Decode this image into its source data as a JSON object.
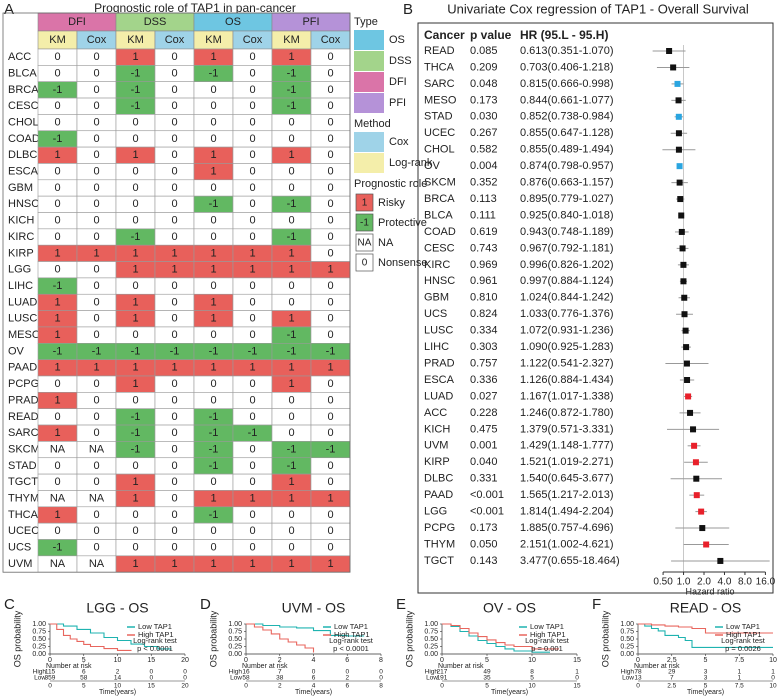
{
  "chart_data": [
    {
      "type": "heatmap",
      "panel": "A",
      "title": "Prognostic role of TAP1 in pan-cancer",
      "column_groups": [
        "DFI",
        "DSS",
        "OS",
        "PFI"
      ],
      "methods": [
        "KM",
        "Cox"
      ],
      "categories": [
        "ACC",
        "BLCA",
        "BRCA",
        "CESC",
        "CHOL",
        "COAD",
        "DLBC",
        "ESCA",
        "GBM",
        "HNSC",
        "KICH",
        "KIRC",
        "KIRP",
        "LGG",
        "LIHC",
        "LUAD",
        "LUSC",
        "MESO",
        "OV",
        "PAAD",
        "PCPG",
        "PRAD",
        "READ",
        "SARC",
        "SKCM",
        "STAD",
        "TGCT",
        "THYM",
        "THCA",
        "UCEC",
        "UCS",
        "UVM"
      ],
      "values": [
        [
          0,
          0,
          1,
          0,
          1,
          0,
          1,
          0
        ],
        [
          0,
          0,
          -1,
          0,
          -1,
          0,
          -1,
          0
        ],
        [
          -1,
          0,
          -1,
          0,
          0,
          0,
          -1,
          0
        ],
        [
          0,
          0,
          -1,
          0,
          0,
          0,
          -1,
          0
        ],
        [
          0,
          0,
          0,
          0,
          0,
          0,
          0,
          0
        ],
        [
          -1,
          0,
          0,
          0,
          0,
          0,
          0,
          0
        ],
        [
          1,
          0,
          1,
          0,
          1,
          0,
          1,
          0
        ],
        [
          0,
          0,
          0,
          0,
          1,
          0,
          0,
          0
        ],
        [
          0,
          0,
          0,
          0,
          0,
          0,
          0,
          0
        ],
        [
          0,
          0,
          0,
          0,
          -1,
          0,
          -1,
          0
        ],
        [
          0,
          0,
          0,
          0,
          0,
          0,
          0,
          0
        ],
        [
          0,
          0,
          -1,
          0,
          0,
          0,
          -1,
          0
        ],
        [
          1,
          1,
          1,
          1,
          1,
          1,
          1,
          0
        ],
        [
          0,
          0,
          1,
          1,
          1,
          1,
          1,
          1
        ],
        [
          -1,
          0,
          0,
          0,
          0,
          0,
          0,
          0
        ],
        [
          1,
          0,
          1,
          0,
          1,
          0,
          0,
          0
        ],
        [
          1,
          0,
          1,
          0,
          1,
          0,
          1,
          0
        ],
        [
          1,
          0,
          0,
          0,
          0,
          0,
          -1,
          0
        ],
        [
          -1,
          -1,
          -1,
          -1,
          -1,
          -1,
          -1,
          -1
        ],
        [
          1,
          1,
          1,
          1,
          1,
          1,
          1,
          1
        ],
        [
          0,
          0,
          1,
          0,
          0,
          0,
          1,
          0
        ],
        [
          1,
          0,
          0,
          0,
          0,
          0,
          0,
          0
        ],
        [
          0,
          0,
          -1,
          0,
          -1,
          0,
          0,
          0
        ],
        [
          1,
          0,
          -1,
          0,
          -1,
          -1,
          0,
          0
        ],
        [
          null,
          null,
          -1,
          0,
          -1,
          0,
          -1,
          -1
        ],
        [
          0,
          0,
          0,
          0,
          -1,
          0,
          -1,
          0
        ],
        [
          0,
          0,
          1,
          0,
          0,
          0,
          1,
          0
        ],
        [
          null,
          null,
          1,
          0,
          1,
          1,
          1,
          1
        ],
        [
          1,
          0,
          0,
          0,
          -1,
          0,
          0,
          0
        ],
        [
          0,
          0,
          0,
          0,
          0,
          0,
          0,
          0
        ],
        [
          -1,
          0,
          0,
          0,
          0,
          0,
          0,
          0
        ],
        [
          null,
          null,
          1,
          1,
          1,
          1,
          1,
          1
        ]
      ],
      "legend": {
        "type_title": "Type",
        "types": [
          {
            "name": "OS",
            "color": "#6ec6e2"
          },
          {
            "name": "DSS",
            "color": "#a3d48b"
          },
          {
            "name": "DFI",
            "color": "#da74a8"
          },
          {
            "name": "PFI",
            "color": "#b592d8"
          }
        ],
        "method_title": "Method",
        "method_types": [
          {
            "name": "Cox",
            "color": "#9fd3e8"
          },
          {
            "name": "Log-rank",
            "color": "#f4eeaa"
          }
        ],
        "role_title": "Prognostic role",
        "roles": [
          {
            "key": 1,
            "name": "Risky",
            "color": "#e8605b"
          },
          {
            "key": -1,
            "name": "Protective",
            "color": "#62b862"
          },
          {
            "key": "NA",
            "name": "NA",
            "color": "#ffffff"
          },
          {
            "key": 0,
            "name": "Nonsense",
            "color": "#ffffff"
          }
        ]
      }
    },
    {
      "type": "forest",
      "panel": "B",
      "title": "Univariate Cox regression of TAP1 - Overall Survival",
      "headers": [
        "Cancer",
        "p value",
        "HR (95.L - 95.H)"
      ],
      "categories": [
        "READ",
        "THCA",
        "SARC",
        "MESO",
        "STAD",
        "UCEC",
        "CHOL",
        "OV",
        "SKCM",
        "BRCA",
        "BLCA",
        "COAD",
        "CESC",
        "KIRC",
        "HNSC",
        "GBM",
        "UCS",
        "LUSC",
        "LIHC",
        "PRAD",
        "ESCA",
        "LUAD",
        "ACC",
        "KICH",
        "UVM",
        "KIRP",
        "DLBC",
        "PAAD",
        "LGG",
        "PCPG",
        "THYM",
        "TGCT"
      ],
      "p_values": [
        "0.085",
        "0.209",
        "0.048",
        "0.173",
        "0.030",
        "0.267",
        "0.582",
        "0.004",
        "0.352",
        "0.113",
        "0.111",
        "0.619",
        "0.743",
        "0.969",
        "0.961",
        "0.810",
        "0.824",
        "0.334",
        "0.303",
        "0.757",
        "0.336",
        "0.027",
        "0.228",
        "0.475",
        "0.001",
        "0.040",
        "0.331",
        "<0.001",
        "<0.001",
        "0.173",
        "0.050",
        "0.143"
      ],
      "values": [
        0.613,
        0.703,
        0.815,
        0.844,
        0.852,
        0.855,
        0.855,
        0.874,
        0.876,
        0.895,
        0.925,
        0.943,
        0.967,
        0.996,
        0.997,
        1.024,
        1.033,
        1.072,
        1.09,
        1.122,
        1.126,
        1.167,
        1.246,
        1.379,
        1.429,
        1.521,
        1.54,
        1.565,
        1.814,
        1.885,
        2.151,
        3.477
      ],
      "lower": [
        0.351,
        0.406,
        0.666,
        0.661,
        0.738,
        0.647,
        0.489,
        0.798,
        0.663,
        0.779,
        0.84,
        0.748,
        0.792,
        0.826,
        0.884,
        0.844,
        0.776,
        0.931,
        0.925,
        0.541,
        0.884,
        1.017,
        0.872,
        0.571,
        1.148,
        1.019,
        0.645,
        1.217,
        1.494,
        0.757,
        1.002,
        0.655
      ],
      "upper": [
        1.07,
        1.218,
        0.998,
        1.077,
        0.984,
        1.128,
        1.494,
        0.957,
        1.157,
        1.027,
        1.018,
        1.189,
        1.181,
        1.202,
        1.124,
        1.242,
        1.376,
        1.236,
        1.283,
        2.327,
        1.434,
        1.338,
        1.78,
        3.331,
        1.777,
        2.271,
        3.677,
        2.013,
        2.204,
        4.696,
        4.621,
        18.464
      ],
      "value_labels": [
        "0.613(0.351-1.070)",
        "0.703(0.406-1.218)",
        "0.815(0.666-0.998)",
        "0.844(0.661-1.077)",
        "0.852(0.738-0.984)",
        "0.855(0.647-1.128)",
        "0.855(0.489-1.494)",
        "0.874(0.798-0.957)",
        "0.876(0.663-1.157)",
        "0.895(0.779-1.027)",
        "0.925(0.840-1.018)",
        "0.943(0.748-1.189)",
        "0.967(0.792-1.181)",
        "0.996(0.826-1.202)",
        "0.997(0.884-1.124)",
        "1.024(0.844-1.242)",
        "1.033(0.776-1.376)",
        "1.072(0.931-1.236)",
        "1.090(0.925-1.283)",
        "1.122(0.541-2.327)",
        "1.126(0.884-1.434)",
        "1.167(1.017-1.338)",
        "1.246(0.872-1.780)",
        "1.379(0.571-3.331)",
        "1.429(1.148-1.777)",
        "1.521(1.019-2.271)",
        "1.540(0.645-3.677)",
        "1.565(1.217-2.013)",
        "1.814(1.494-2.204)",
        "1.885(0.757-4.696)",
        "2.151(1.002-4.621)",
        "3.477(0.655-18.464)"
      ],
      "colors": [
        "#111111",
        "#111111",
        "#2aa5e0",
        "#111111",
        "#2aa5e0",
        "#111111",
        "#111111",
        "#2aa5e0",
        "#111111",
        "#111111",
        "#111111",
        "#111111",
        "#111111",
        "#111111",
        "#111111",
        "#111111",
        "#111111",
        "#111111",
        "#111111",
        "#111111",
        "#111111",
        "#e8202a",
        "#111111",
        "#111111",
        "#e8202a",
        "#e8202a",
        "#111111",
        "#e8202a",
        "#e8202a",
        "#111111",
        "#e8202a",
        "#111111"
      ],
      "log_scale": true,
      "xlim": [
        0.3,
        20
      ],
      "xticks": [
        {
          "value": 0.5,
          "label": "0.50"
        },
        {
          "value": 1,
          "label": "1.0"
        },
        {
          "value": 2,
          "label": "2.0"
        },
        {
          "value": 4,
          "label": "4.0"
        },
        {
          "value": 8,
          "label": "8.0"
        },
        {
          "value": 16,
          "label": "16.0"
        }
      ],
      "xlabel": "Hazard ratio"
    },
    {
      "type": "km",
      "panel": "C",
      "title": "LGG - OS",
      "xlabel": "Time(years)",
      "ylabel": "OS probability",
      "xlim": [
        0,
        20
      ],
      "xticks": [
        0,
        5,
        10,
        15,
        20
      ],
      "ylim": [
        0,
        1
      ],
      "yticks": [
        {
          "value": 0,
          "label": "0.00"
        },
        {
          "value": 0.25,
          "label": "0.25"
        },
        {
          "value": 0.5,
          "label": "0.50"
        },
        {
          "value": 0.75,
          "label": "0.75"
        },
        {
          "value": 1,
          "label": "1.00"
        }
      ],
      "series": [
        {
          "name": "Low TAP1",
          "color": "#1fb3b0",
          "x": [
            0,
            2,
            4,
            6,
            8,
            10,
            12,
            14,
            16,
            18
          ],
          "values": [
            1,
            0.93,
            0.82,
            0.7,
            0.55,
            0.45,
            0.33,
            0.25,
            0.17,
            0.17
          ]
        },
        {
          "name": "High TAP1",
          "color": "#e8665e",
          "x": [
            0,
            1,
            2,
            3,
            4,
            5,
            6,
            8,
            10,
            12
          ],
          "values": [
            1,
            0.82,
            0.62,
            0.5,
            0.42,
            0.32,
            0.25,
            0.18,
            0.12,
            0.1
          ]
        }
      ],
      "annotation": [
        "Log-rank test",
        "p < 0.0001"
      ],
      "risk_table": {
        "title": "Number at risk",
        "rows": [
          {
            "name": "High",
            "color": "#e8665e",
            "values": [
              115,
              6,
              2,
              0,
              0
            ]
          },
          {
            "name": "Low",
            "color": "#1fb3b0",
            "values": [
              359,
              58,
              14,
              0,
              0
            ]
          }
        ]
      }
    },
    {
      "type": "km",
      "panel": "D",
      "title": "UVM - OS",
      "xlabel": "Time(years)",
      "ylabel": "OS probability",
      "xlim": [
        0,
        8
      ],
      "xticks": [
        0,
        2,
        4,
        6,
        8
      ],
      "ylim": [
        0,
        1
      ],
      "yticks": [
        {
          "value": 0,
          "label": "0.00"
        },
        {
          "value": 0.25,
          "label": "0.25"
        },
        {
          "value": 0.5,
          "label": "0.50"
        },
        {
          "value": 0.75,
          "label": "0.75"
        },
        {
          "value": 1,
          "label": "1.00"
        }
      ],
      "series": [
        {
          "name": "Low TAP1",
          "color": "#1fb3b0",
          "x": [
            0,
            1,
            2,
            3,
            4,
            5,
            6,
            7
          ],
          "values": [
            1,
            0.95,
            0.9,
            0.87,
            0.78,
            0.62,
            0.6,
            0.6
          ]
        },
        {
          "name": "High TAP1",
          "color": "#e8665e",
          "x": [
            0,
            0.5,
            1,
            1.5,
            2,
            2.5,
            3,
            3.5,
            4
          ],
          "values": [
            1,
            0.9,
            0.8,
            0.67,
            0.5,
            0.4,
            0.3,
            0.2,
            0.05
          ]
        }
      ],
      "annotation": [
        "Log-rank test",
        "p < 0.0001"
      ],
      "risk_table": {
        "title": "Number at risk",
        "rows": [
          {
            "name": "High",
            "color": "#e8665e",
            "values": [
              16,
              7,
              0,
              0,
              0
            ]
          },
          {
            "name": "Low",
            "color": "#1fb3b0",
            "values": [
              58,
              38,
              6,
              2,
              0
            ]
          }
        ]
      }
    },
    {
      "type": "km",
      "panel": "E",
      "title": "OV - OS",
      "xlabel": "Time(years)",
      "ylabel": "OS probability",
      "xlim": [
        0,
        15
      ],
      "xticks": [
        0,
        5,
        10,
        15
      ],
      "ylim": [
        0,
        1
      ],
      "yticks": [
        {
          "value": 0,
          "label": "0.00"
        },
        {
          "value": 0.25,
          "label": "0.25"
        },
        {
          "value": 0.5,
          "label": "0.50"
        },
        {
          "value": 0.75,
          "label": "0.75"
        },
        {
          "value": 1,
          "label": "1.00"
        }
      ],
      "series": [
        {
          "name": "Low TAP1",
          "color": "#1fb3b0",
          "x": [
            0,
            1,
            2,
            3,
            4,
            5,
            6,
            7,
            8,
            10,
            12
          ],
          "values": [
            1,
            0.92,
            0.75,
            0.6,
            0.45,
            0.35,
            0.25,
            0.17,
            0.1,
            0.06,
            0.06
          ]
        },
        {
          "name": "High TAP1",
          "color": "#e8665e",
          "x": [
            0,
            1,
            2,
            3,
            4,
            5,
            6,
            7,
            8,
            10,
            13
          ],
          "values": [
            1,
            0.95,
            0.85,
            0.7,
            0.58,
            0.47,
            0.38,
            0.3,
            0.25,
            0.17,
            0.17
          ]
        }
      ],
      "annotation": [
        "Log-rank test",
        "p = 0.001"
      ],
      "risk_table": {
        "title": "Number at risk",
        "rows": [
          {
            "name": "High",
            "color": "#e8665e",
            "values": [
              217,
              49,
              8,
              1
            ]
          },
          {
            "name": "Low",
            "color": "#1fb3b0",
            "values": [
              191,
              35,
              5,
              0
            ]
          }
        ]
      }
    },
    {
      "type": "km",
      "panel": "F",
      "title": "READ - OS",
      "xlabel": "Time(years)",
      "ylabel": "OS probability",
      "xlim": [
        0,
        10
      ],
      "xticks": [
        0,
        2.5,
        5,
        7.5,
        10
      ],
      "ylim": [
        0,
        1
      ],
      "yticks": [
        {
          "value": 0,
          "label": "0.00"
        },
        {
          "value": 0.25,
          "label": "0.25"
        },
        {
          "value": 0.5,
          "label": "0.50"
        },
        {
          "value": 0.75,
          "label": "0.75"
        },
        {
          "value": 1,
          "label": "1.00"
        }
      ],
      "series": [
        {
          "name": "Low TAP1",
          "color": "#1fb3b0",
          "x": [
            0,
            0.5,
            1,
            1.5,
            2,
            3,
            3.5,
            4,
            10
          ],
          "values": [
            1,
            0.93,
            0.85,
            0.77,
            0.62,
            0.55,
            0.45,
            0.22,
            0.22
          ]
        },
        {
          "name": "High TAP1",
          "color": "#e8665e",
          "x": [
            0,
            1,
            2,
            3,
            4,
            5,
            10
          ],
          "values": [
            1,
            0.97,
            0.93,
            0.9,
            0.85,
            0.7,
            0.7
          ]
        }
      ],
      "annotation": [
        "Log-rank test",
        "p = 0.0026"
      ],
      "risk_table": {
        "title": "Number at risk",
        "rows": [
          {
            "name": "High",
            "color": "#e8665e",
            "values": [
              78,
              29,
              3,
              1,
              1
            ]
          },
          {
            "name": "Low",
            "color": "#1fb3b0",
            "values": [
              13,
              7,
              3,
              1,
              0
            ]
          }
        ]
      }
    }
  ]
}
